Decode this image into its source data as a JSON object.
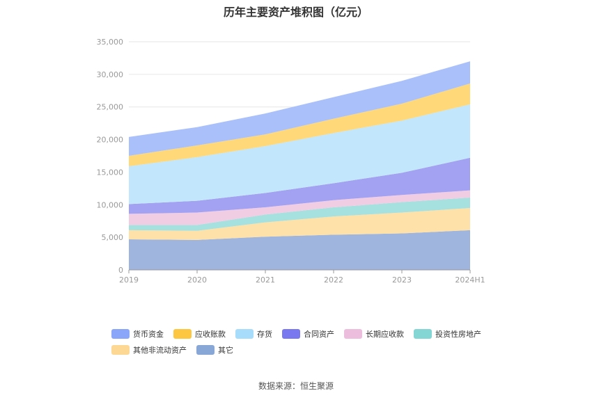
{
  "chart_data": {
    "type": "area",
    "stacked": true,
    "title": "历年主要资产堆积图（亿元）",
    "categories": [
      "2019",
      "2020",
      "2021",
      "2022",
      "2023",
      "2024H1"
    ],
    "ylim": [
      0,
      35000
    ],
    "yticks": [
      "0",
      "5,000",
      "10,000",
      "15,000",
      "20,000",
      "25,000",
      "30,000",
      "35,000"
    ],
    "ytick_values": [
      0,
      5000,
      10000,
      15000,
      20000,
      25000,
      30000,
      35000
    ],
    "legend_position": "bottom",
    "series": [
      {
        "name": "其它",
        "color": "#9fb5de",
        "values": [
          4700,
          4600,
          5100,
          5400,
          5600,
          6100
        ]
      },
      {
        "name": "其他非流动资产",
        "color": "#fde1a8",
        "values": [
          1400,
          1400,
          2200,
          2800,
          3200,
          3400
        ]
      },
      {
        "name": "投资性房地产",
        "color": "#a6e0df",
        "values": [
          800,
          900,
          1200,
          1400,
          1600,
          1600
        ]
      },
      {
        "name": "长期应收款",
        "color": "#f1cde4",
        "values": [
          1700,
          1900,
          1100,
          1100,
          1100,
          1100
        ]
      },
      {
        "name": "合同资产",
        "color": "#a3a2f2",
        "values": [
          1500,
          1800,
          2200,
          2600,
          3400,
          5000
        ]
      },
      {
        "name": "存货",
        "color": "#c2e6fb",
        "values": [
          5800,
          6700,
          7200,
          7700,
          8000,
          8200
        ]
      },
      {
        "name": "应收账款",
        "color": "#fed879",
        "values": [
          1600,
          1800,
          1800,
          2200,
          2600,
          3200
        ]
      },
      {
        "name": "货币资金",
        "color": "#a9c0fb",
        "values": [
          2900,
          2800,
          3200,
          3300,
          3500,
          3400
        ]
      }
    ]
  },
  "legend": {
    "row1": [
      {
        "label": "货币资金",
        "color": "#8aa6f8"
      },
      {
        "label": "应收账款",
        "color": "#fdc741"
      },
      {
        "label": "存货",
        "color": "#a7dcfa"
      },
      {
        "label": "合同资产",
        "color": "#7a78ee"
      },
      {
        "label": "长期应收款",
        "color": "#ecbddc"
      },
      {
        "label": "投资性房地产",
        "color": "#84d6d4"
      }
    ],
    "row2": [
      {
        "label": "其他非流动资产",
        "color": "#fdd794"
      },
      {
        "label": "其它",
        "color": "#88a6d6"
      }
    ]
  },
  "source": "数据来源：恒生聚源"
}
